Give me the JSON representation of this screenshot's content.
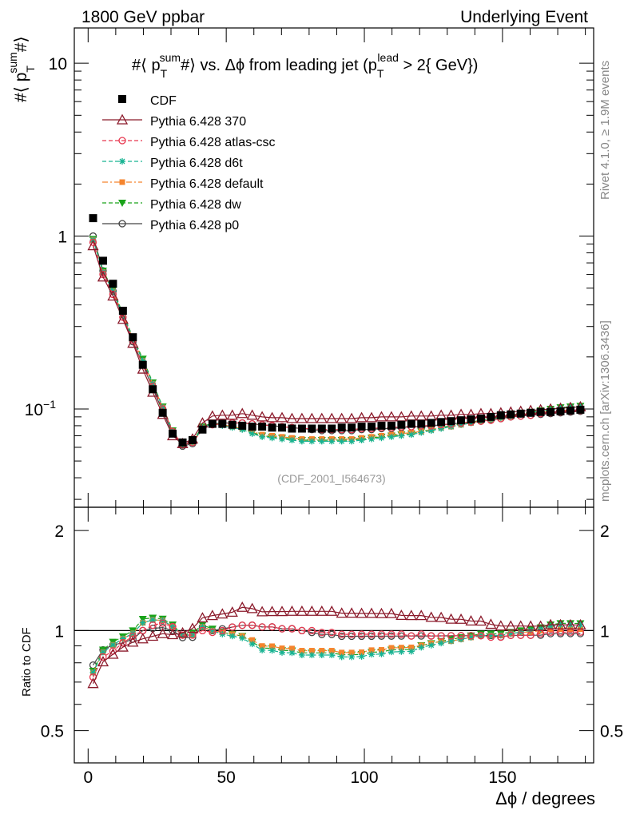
{
  "header": {
    "left": "1800 GeV ppbar",
    "right": "Underlying Event"
  },
  "side_labels": {
    "rivet": "Rivet 4.1.0, ≥ 1.9M events",
    "mcplots": "mcplots.cern.ch [arXiv:1306.3436]"
  },
  "watermark": "(CDF_2001_I564673)",
  "chart_data": [
    {
      "type": "scatter",
      "title": "#⟨ p_T^sum #⟩ vs. Δϕ from leading jet  (p_T^lead > 2{ GeV})",
      "title_parts": {
        "a": "#⟨ p",
        "a_sup": "sum",
        "a_sub": "T",
        "b": "#⟩ vs. Δϕ from leading jet  (p",
        "b_sup": "lead",
        "b_sub": "T",
        "c": " > 2{ GeV})"
      },
      "ylabel": "#⟨ p_T^sum #⟩",
      "ylabel_parts": {
        "a": "#⟨ p",
        "sup": "sum",
        "sub": "T",
        "b": "#⟩"
      },
      "yscale": "log",
      "ylim": [
        0.027,
        16
      ],
      "xlim": [
        -5,
        183
      ],
      "yticks": [
        {
          "value": 10,
          "label": "10"
        },
        {
          "value": 1,
          "label": "1"
        },
        {
          "value": 0.1,
          "label": "10",
          "sup": "−1"
        }
      ],
      "legend_position": "top-left",
      "x": [
        1.8,
        5.4,
        9.0,
        12.6,
        16.2,
        19.8,
        23.4,
        27.0,
        30.6,
        34.2,
        37.8,
        41.4,
        45.0,
        48.6,
        52.2,
        55.8,
        59.4,
        63.0,
        66.6,
        70.2,
        73.8,
        77.4,
        81.0,
        84.6,
        88.2,
        91.8,
        95.4,
        99.0,
        102.6,
        106.2,
        109.8,
        113.4,
        117.0,
        120.6,
        124.2,
        127.8,
        131.4,
        135.0,
        138.6,
        142.2,
        145.8,
        149.4,
        153.0,
        156.6,
        160.2,
        163.8,
        167.4,
        171.0,
        174.6,
        178.2
      ],
      "series": [
        {
          "name": "CDF",
          "color": "#000000",
          "marker": "square-filled",
          "line": "none",
          "values": [
            1.27,
            0.72,
            0.53,
            0.37,
            0.26,
            0.18,
            0.13,
            0.095,
            0.072,
            0.064,
            0.066,
            0.076,
            0.082,
            0.082,
            0.081,
            0.08,
            0.079,
            0.079,
            0.078,
            0.078,
            0.077,
            0.077,
            0.077,
            0.077,
            0.077,
            0.078,
            0.078,
            0.079,
            0.079,
            0.08,
            0.08,
            0.081,
            0.082,
            0.082,
            0.083,
            0.084,
            0.085,
            0.086,
            0.087,
            0.088,
            0.09,
            0.092,
            0.093,
            0.094,
            0.095,
            0.096,
            0.096,
            0.097,
            0.098,
            0.099
          ]
        },
        {
          "name": "Pythia 6.428 370",
          "color": "#8b1a2b",
          "marker": "triangle-open",
          "line": "solid",
          "values": [
            0.88,
            0.58,
            0.45,
            0.33,
            0.24,
            0.17,
            0.125,
            0.093,
            0.07,
            0.063,
            0.067,
            0.083,
            0.091,
            0.092,
            0.092,
            0.094,
            0.092,
            0.09,
            0.089,
            0.089,
            0.088,
            0.088,
            0.088,
            0.088,
            0.088,
            0.088,
            0.088,
            0.089,
            0.089,
            0.09,
            0.09,
            0.09,
            0.091,
            0.091,
            0.091,
            0.092,
            0.092,
            0.093,
            0.093,
            0.094,
            0.094,
            0.095,
            0.096,
            0.097,
            0.098,
            0.099,
            0.1,
            0.101,
            0.102,
            0.103
          ]
        },
        {
          "name": "Pythia 6.428 atlas-csc",
          "color": "#e8384f",
          "marker": "circle-open",
          "line": "dashed",
          "values": [
            0.92,
            0.6,
            0.46,
            0.34,
            0.25,
            0.18,
            0.135,
            0.1,
            0.074,
            0.062,
            0.064,
            0.076,
            0.081,
            0.082,
            0.083,
            0.083,
            0.082,
            0.081,
            0.08,
            0.079,
            0.078,
            0.077,
            0.077,
            0.076,
            0.076,
            0.076,
            0.076,
            0.077,
            0.077,
            0.078,
            0.078,
            0.079,
            0.079,
            0.08,
            0.08,
            0.081,
            0.082,
            0.083,
            0.084,
            0.085,
            0.086,
            0.088,
            0.09,
            0.091,
            0.092,
            0.094,
            0.095,
            0.096,
            0.097,
            0.098
          ]
        },
        {
          "name": "Pythia 6.428 d6t",
          "color": "#17b392",
          "marker": "star",
          "line": "dashed",
          "values": [
            0.95,
            0.62,
            0.48,
            0.35,
            0.255,
            0.19,
            0.14,
            0.102,
            0.074,
            0.062,
            0.064,
            0.078,
            0.082,
            0.08,
            0.078,
            0.076,
            0.072,
            0.069,
            0.068,
            0.067,
            0.066,
            0.065,
            0.065,
            0.065,
            0.065,
            0.065,
            0.065,
            0.066,
            0.067,
            0.068,
            0.069,
            0.07,
            0.071,
            0.073,
            0.075,
            0.077,
            0.079,
            0.081,
            0.083,
            0.085,
            0.087,
            0.089,
            0.091,
            0.093,
            0.095,
            0.097,
            0.099,
            0.101,
            0.102,
            0.103
          ]
        },
        {
          "name": "Pythia 6.428 default",
          "color": "#f5842d",
          "marker": "square-filled-small",
          "line": "dashdot",
          "values": [
            0.95,
            0.62,
            0.48,
            0.35,
            0.255,
            0.19,
            0.14,
            0.102,
            0.074,
            0.062,
            0.064,
            0.078,
            0.082,
            0.081,
            0.079,
            0.077,
            0.074,
            0.071,
            0.07,
            0.069,
            0.068,
            0.067,
            0.067,
            0.067,
            0.067,
            0.067,
            0.067,
            0.068,
            0.069,
            0.07,
            0.071,
            0.072,
            0.073,
            0.074,
            0.076,
            0.078,
            0.079,
            0.081,
            0.083,
            0.085,
            0.087,
            0.089,
            0.091,
            0.093,
            0.094,
            0.096,
            0.097,
            0.098,
            0.099,
            0.1
          ]
        },
        {
          "name": "Pythia 6.428 dw",
          "color": "#1aa31a",
          "marker": "triangle-down-filled",
          "line": "dashed",
          "values": [
            0.96,
            0.63,
            0.49,
            0.355,
            0.26,
            0.195,
            0.142,
            0.103,
            0.075,
            0.062,
            0.065,
            0.079,
            0.083,
            0.081,
            0.079,
            0.077,
            0.073,
            0.07,
            0.069,
            0.068,
            0.067,
            0.066,
            0.066,
            0.066,
            0.066,
            0.066,
            0.066,
            0.067,
            0.068,
            0.069,
            0.07,
            0.071,
            0.072,
            0.074,
            0.076,
            0.078,
            0.08,
            0.082,
            0.084,
            0.086,
            0.088,
            0.09,
            0.092,
            0.094,
            0.096,
            0.098,
            0.1,
            0.102,
            0.103,
            0.104
          ]
        },
        {
          "name": "Pythia 6.428 p0",
          "color": "#444444",
          "marker": "circle-open",
          "line": "solid",
          "values": [
            1.0,
            0.63,
            0.48,
            0.34,
            0.245,
            0.18,
            0.132,
            0.097,
            0.072,
            0.061,
            0.063,
            0.078,
            0.082,
            0.083,
            0.083,
            0.083,
            0.082,
            0.081,
            0.08,
            0.079,
            0.078,
            0.077,
            0.076,
            0.075,
            0.075,
            0.075,
            0.075,
            0.076,
            0.076,
            0.077,
            0.077,
            0.078,
            0.079,
            0.079,
            0.08,
            0.081,
            0.082,
            0.083,
            0.084,
            0.085,
            0.087,
            0.088,
            0.09,
            0.091,
            0.092,
            0.093,
            0.094,
            0.095,
            0.096,
            0.097
          ]
        }
      ]
    },
    {
      "type": "scatter",
      "subtype": "ratio",
      "ylabel": "Ratio to CDF",
      "xlabel": "Δϕ / degrees",
      "xlim": [
        -5,
        183
      ],
      "ylim": [
        0.4,
        2.35
      ],
      "yscale": "log",
      "xticks": [
        0,
        50,
        100,
        150
      ],
      "yticks": [
        {
          "value": 0.5,
          "label": "0.5"
        },
        {
          "value": 1,
          "label": "1"
        },
        {
          "value": 2,
          "label": "2"
        }
      ],
      "reference_line": 1.0
    }
  ]
}
